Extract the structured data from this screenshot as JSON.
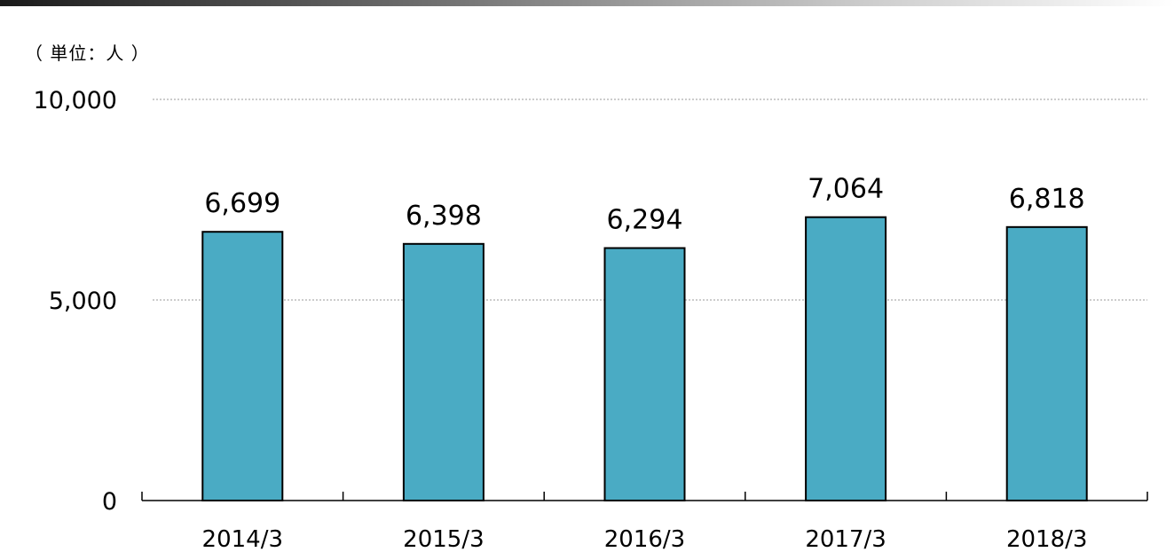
{
  "unit_label": "（ 単位：人 ）",
  "colors": {
    "bar_fill": "#4aabc4",
    "bar_stroke": "#000000",
    "grid": "#9a9a9a"
  },
  "chart_data": {
    "type": "bar",
    "categories": [
      "2014/3",
      "2015/3",
      "2016/3",
      "2017/3",
      "2018/3"
    ],
    "values": [
      6699,
      6398,
      6294,
      7064,
      6818
    ],
    "value_labels": [
      "6,699",
      "6,398",
      "6,294",
      "7,064",
      "6,818"
    ],
    "ylim": [
      0,
      10000
    ],
    "yticks": [
      0,
      5000,
      10000
    ],
    "ytick_labels": [
      "0",
      "5,000",
      "10,000"
    ],
    "grid": true,
    "legend": "none"
  }
}
